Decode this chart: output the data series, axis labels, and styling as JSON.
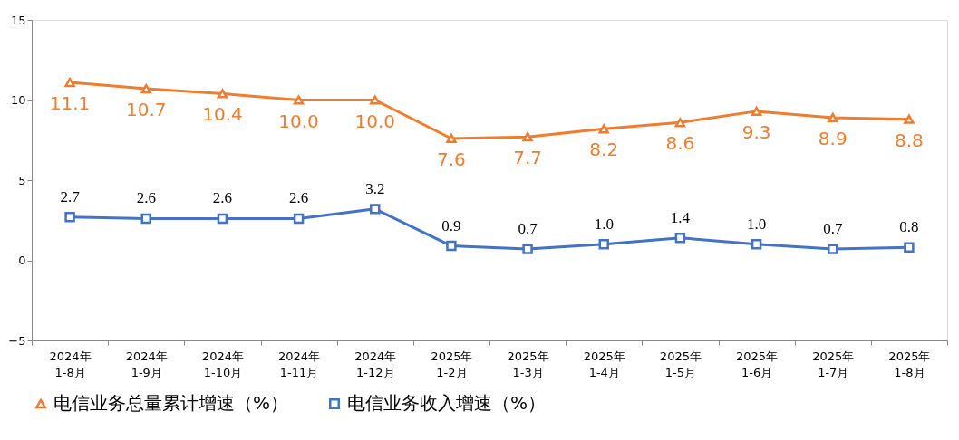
{
  "chart_data": {
    "type": "line",
    "categories": [
      "2024年\n1-8月",
      "2024年\n1-9月",
      "2024年\n1-10月",
      "2024年\n1-11月",
      "2024年\n1-12月",
      "2025年\n1-2月",
      "2025年\n1-3月",
      "2025年\n1-4月",
      "2025年\n1-5月",
      "2025年\n1-6月",
      "2025年\n1-7月",
      "2025年\n1-8月"
    ],
    "series": [
      {
        "name": "电信业务总量累计增速（%）",
        "color": "#ed7d31",
        "marker": "triangle",
        "values": [
          11.1,
          10.7,
          10.4,
          10.0,
          10.0,
          7.6,
          7.7,
          8.2,
          8.6,
          9.3,
          8.9,
          8.8
        ],
        "value_labels": [
          "11.1",
          "10.7",
          "10.4",
          "10.0",
          "10.0",
          "7.6",
          "7.7",
          "8.2",
          "8.6",
          "9.3",
          "8.9",
          "8.8"
        ]
      },
      {
        "name": "电信业务收入增速（%）",
        "color": "#4472c4",
        "marker": "square",
        "values": [
          2.7,
          2.6,
          2.6,
          2.6,
          3.2,
          0.9,
          0.7,
          1.0,
          1.4,
          1.0,
          0.7,
          0.8
        ],
        "value_labels": [
          "2.7",
          "2.6",
          "2.6",
          "2.6",
          "3.2",
          "0.9",
          "0.7",
          "1.0",
          "1.4",
          "1.0",
          "0.7",
          "0.8"
        ]
      }
    ],
    "ylim": [
      -5,
      15
    ],
    "yticks": [
      -5,
      0,
      5,
      10,
      15
    ],
    "grid": false,
    "legend": "bottom",
    "line_style": "solid"
  }
}
